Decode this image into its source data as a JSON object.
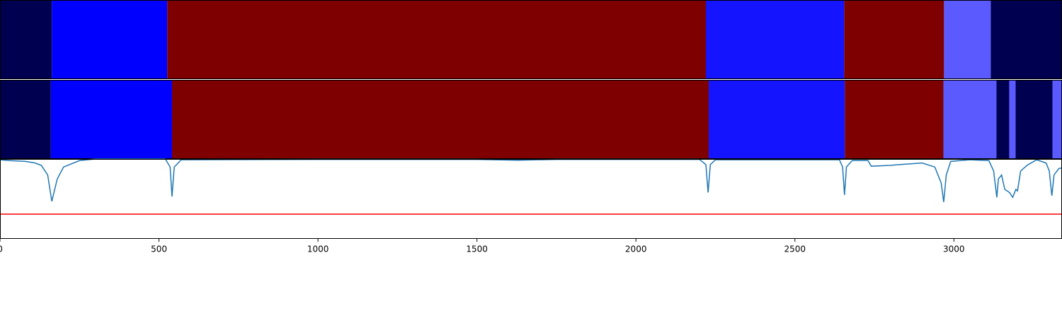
{
  "chart_data": {
    "type": "segments",
    "xlim": [
      0,
      3340
    ],
    "xticks": [
      0,
      500,
      1000,
      1500,
      2000,
      2500,
      3000
    ],
    "rows": [
      {
        "segments": [
          {
            "start": 0,
            "end": 163,
            "color": "#000050"
          },
          {
            "start": 163,
            "end": 526,
            "color": "#0000ff"
          },
          {
            "start": 526,
            "end": 2220,
            "color": "#7f0000"
          },
          {
            "start": 2220,
            "end": 2655,
            "color": "#1414ff"
          },
          {
            "start": 2655,
            "end": 2969,
            "color": "#7f0000"
          },
          {
            "start": 2969,
            "end": 3116,
            "color": "#5a5aff"
          },
          {
            "start": 3116,
            "end": 3340,
            "color": "#000050"
          }
        ]
      },
      {
        "segments": [
          {
            "start": 0,
            "end": 160,
            "color": "#000050"
          },
          {
            "start": 160,
            "end": 541,
            "color": "#0000ff"
          },
          {
            "start": 541,
            "end": 2229,
            "color": "#7f0000"
          },
          {
            "start": 2229,
            "end": 2657,
            "color": "#1414ff"
          },
          {
            "start": 2657,
            "end": 2967,
            "color": "#7f0000"
          },
          {
            "start": 2967,
            "end": 3134,
            "color": "#5a5aff"
          },
          {
            "start": 3134,
            "end": 3174,
            "color": "#000050"
          },
          {
            "start": 3174,
            "end": 3194,
            "color": "#5a5aff"
          },
          {
            "start": 3194,
            "end": 3310,
            "color": "#000050"
          },
          {
            "start": 3310,
            "end": 3340,
            "color": "#5a5aff"
          }
        ]
      }
    ],
    "line": {
      "type": "line",
      "ylim": [
        0,
        1
      ],
      "threshold": 0.31,
      "threshold_color": "#ff0000",
      "x": [
        0,
        30,
        80,
        110,
        130,
        150,
        163,
        180,
        200,
        250,
        300,
        520,
        535,
        541,
        548,
        570,
        1000,
        1500,
        1630,
        1750,
        2200,
        2220,
        2227,
        2234,
        2250,
        2640,
        2650,
        2656,
        2662,
        2680,
        2730,
        2740,
        2800,
        2830,
        2900,
        2940,
        2960,
        2968,
        2976,
        2990,
        3050,
        3110,
        3125,
        3135,
        3140,
        3150,
        3160,
        3175,
        3185,
        3195,
        3200,
        3210,
        3230,
        3260,
        3290,
        3300,
        3308,
        3315,
        3330,
        3340
      ],
      "series": [
        {
          "color": "#1f77b4",
          "values": [
            0.99,
            0.98,
            0.97,
            0.95,
            0.92,
            0.8,
            0.47,
            0.75,
            0.9,
            0.98,
            1.0,
            1.0,
            0.9,
            0.53,
            0.9,
            0.99,
            0.995,
            0.995,
            0.985,
            0.995,
            0.995,
            0.93,
            0.58,
            0.93,
            0.99,
            0.99,
            0.9,
            0.55,
            0.9,
            0.98,
            0.98,
            0.91,
            0.92,
            0.93,
            0.95,
            0.9,
            0.7,
            0.46,
            0.8,
            0.97,
            0.99,
            0.98,
            0.85,
            0.52,
            0.75,
            0.8,
            0.62,
            0.58,
            0.52,
            0.62,
            0.6,
            0.85,
            0.92,
            0.99,
            0.95,
            0.85,
            0.54,
            0.8,
            0.88,
            0.89
          ]
        }
      ]
    }
  }
}
